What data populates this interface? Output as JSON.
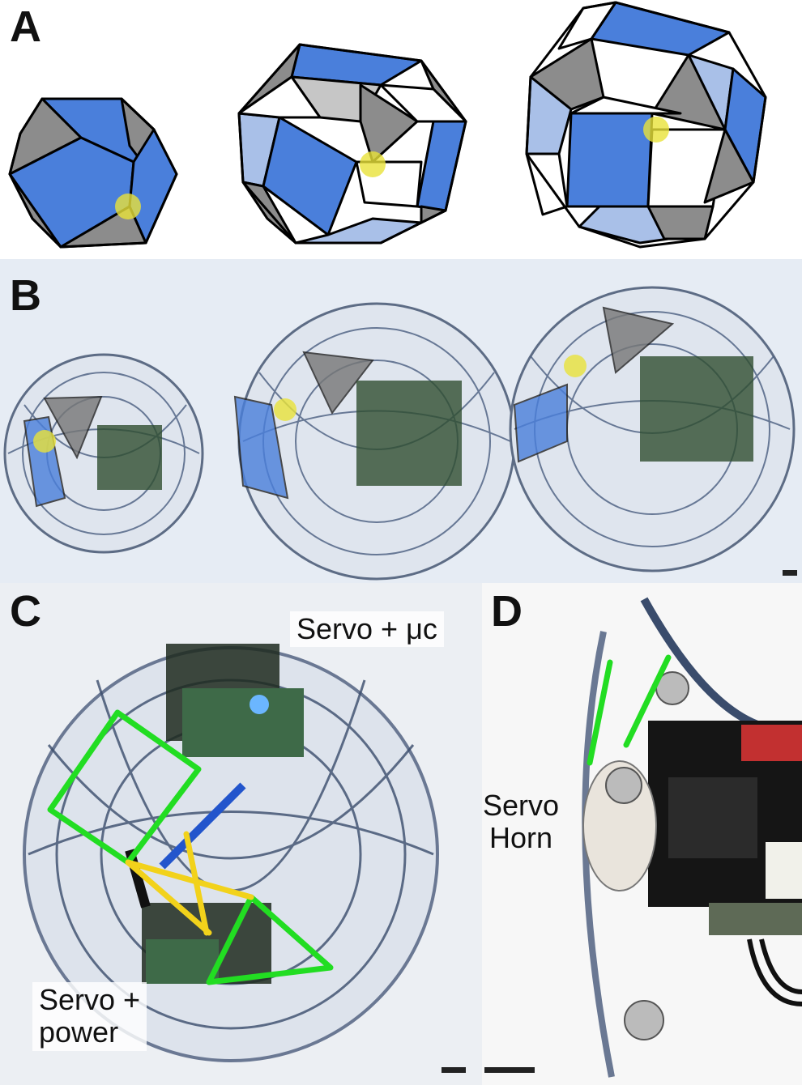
{
  "panels": {
    "a": {
      "letter": "A"
    },
    "b": {
      "letter": "B"
    },
    "c": {
      "letter": "C",
      "label_top": "Servo + μc",
      "label_bottom_line1": "Servo +",
      "label_bottom_line2": "power"
    },
    "d": {
      "letter": "D",
      "label_line1": "Servo",
      "label_line2": "Horn"
    }
  },
  "colors": {
    "face_blue": "#4a7fdb",
    "face_light_blue": "#a9c0e8",
    "face_gray": "#8c8c8c",
    "face_light_gray": "#c6c6c6",
    "joint_yellow": "#e8e23a",
    "highlight_green": "#22dd22",
    "highlight_yellow": "#f2d21b"
  }
}
